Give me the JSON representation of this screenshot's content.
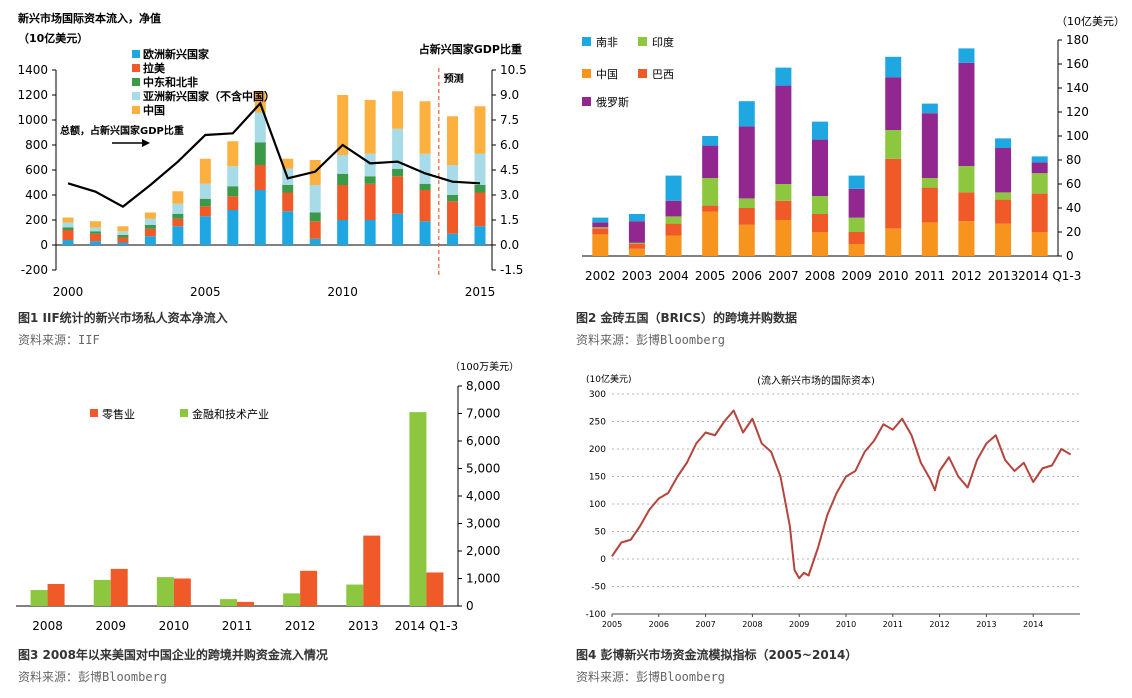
{
  "figures": [
    {
      "caption": "图1  IIF统计的新兴市场私人资本净流入",
      "source": "资料来源：IIF"
    },
    {
      "caption": "图2  金砖五国（BRICS）的跨境并购数据",
      "source": "资料来源：彭博Bloomberg"
    },
    {
      "caption": "图3  2008年以来美国对中国企业的跨境并购资金流入情况",
      "source": "资料来源：彭博Bloomberg"
    },
    {
      "caption": "图4  彭博新兴市场资金流模拟指标（2005~2014）",
      "source": "资料来源：彭博Bloomberg"
    }
  ],
  "chart_data": [
    {
      "type": "bar",
      "title": "新兴市场国际资本流入，净值",
      "ylabel": "（10亿美元）",
      "y2label": "占新兴国家GDP比重",
      "annotation": "总额，占新兴国家GDP比重",
      "forecast_label": "预测",
      "forecast_from": 2013.5,
      "x": [
        2000,
        2001,
        2002,
        2003,
        2004,
        2005,
        2006,
        2007,
        2008,
        2009,
        2010,
        2011,
        2012,
        2013,
        2014,
        2015
      ],
      "x_ticks": [
        "2000",
        "2005",
        "2010",
        "2015"
      ],
      "x_tick_values": [
        2000,
        2005,
        2010,
        2015
      ],
      "ylim": [
        -200,
        1400
      ],
      "y_ticks": [
        "-200",
        "0",
        "200",
        "400",
        "600",
        "800",
        "1000",
        "1200",
        "1400"
      ],
      "y2lim": [
        -1.5,
        10.5
      ],
      "y2_ticks": [
        "-1.5",
        "0.0",
        "1.5",
        "3.0",
        "4.5",
        "6.0",
        "7.5",
        "9.0",
        "10.5"
      ],
      "series": [
        {
          "name": "欧洲新兴国家",
          "color": "#1ea7e1",
          "values": [
            40,
            30,
            20,
            70,
            150,
            230,
            280,
            440,
            270,
            50,
            200,
            200,
            250,
            190,
            90,
            150
          ]
        },
        {
          "name": "拉美",
          "color": "#f05a28",
          "values": [
            80,
            60,
            40,
            60,
            60,
            80,
            110,
            200,
            150,
            140,
            280,
            290,
            300,
            250,
            260,
            270
          ]
        },
        {
          "name": "中东和北非",
          "color": "#3a9a48",
          "values": [
            20,
            20,
            20,
            30,
            40,
            60,
            80,
            180,
            60,
            70,
            90,
            60,
            60,
            50,
            50,
            60
          ]
        },
        {
          "name": "亚洲新兴国家（不含中国）",
          "color": "#a8dbe8",
          "values": [
            40,
            30,
            30,
            50,
            80,
            120,
            160,
            240,
            130,
            220,
            150,
            180,
            320,
            240,
            240,
            250
          ]
        },
        {
          "name": "中国",
          "color": "#fbb040",
          "values": [
            40,
            50,
            40,
            50,
            100,
            200,
            200,
            170,
            80,
            200,
            480,
            430,
            300,
            420,
            390,
            380
          ]
        }
      ],
      "line": {
        "name": "总额，占新兴国家GDP比重",
        "color": "#000000",
        "values": [
          3.7,
          3.2,
          2.3,
          3.6,
          5.0,
          6.6,
          6.7,
          8.5,
          4.0,
          4.4,
          6.0,
          4.9,
          5.0,
          4.3,
          3.8,
          3.7
        ]
      }
    },
    {
      "type": "bar",
      "ylabel": "（10亿美元）",
      "categories": [
        "2002",
        "2003",
        "2004",
        "2005",
        "2006",
        "2007",
        "2008",
        "2009",
        "2010",
        "2011",
        "2012",
        "2013",
        "2014 Q1-3"
      ],
      "ylim": [
        0,
        180
      ],
      "y_ticks": [
        "0",
        "20",
        "40",
        "60",
        "80",
        "100",
        "120",
        "140",
        "160",
        "180"
      ],
      "series": [
        {
          "name": "中国",
          "color": "#f7941d",
          "values": [
            18,
            6,
            17,
            37,
            26,
            30,
            20,
            10,
            23,
            28,
            29,
            27,
            20
          ]
        },
        {
          "name": "巴西",
          "color": "#f05a28",
          "values": [
            5,
            4,
            10,
            5,
            14,
            16,
            15,
            10,
            58,
            29,
            24,
            20,
            32
          ]
        },
        {
          "name": "印度",
          "color": "#8dc63f",
          "values": [
            1,
            1,
            6,
            23,
            8,
            14,
            15,
            12,
            24,
            8,
            22,
            6,
            17
          ]
        },
        {
          "name": "俄罗斯",
          "color": "#92278f",
          "values": [
            4,
            18,
            13,
            27,
            60,
            82,
            47,
            24,
            44,
            54,
            86,
            37,
            9
          ]
        },
        {
          "name": "南非",
          "color": "#1ea7e1",
          "values": [
            4,
            6,
            21,
            8,
            21,
            15,
            15,
            11,
            17,
            8,
            12,
            8,
            5
          ]
        }
      ]
    },
    {
      "type": "bar",
      "ylabel": "（100万美元）",
      "categories": [
        "2008",
        "2009",
        "2010",
        "2011",
        "2012",
        "2013",
        "2014 Q1-3"
      ],
      "ylim": [
        0,
        8000
      ],
      "y_ticks": [
        "0",
        "1,000",
        "2,000",
        "3,000",
        "4,000",
        "5,000",
        "6,000",
        "7,000",
        "8,000"
      ],
      "series": [
        {
          "name": "金融和技术产业",
          "color": "#8dc63f",
          "values": [
            580,
            950,
            1050,
            250,
            460,
            780,
            7050
          ]
        },
        {
          "name": "零售业",
          "color": "#f05a28",
          "values": [
            800,
            1350,
            1000,
            150,
            1280,
            2560,
            1220
          ]
        }
      ]
    },
    {
      "type": "line",
      "title": "(流入新兴市场的国际资本)",
      "ylabel": "(10亿美元)",
      "x_ticks": [
        "2005",
        "2006",
        "2007",
        "2008",
        "2009",
        "2010",
        "2011",
        "2012",
        "2013",
        "2014"
      ],
      "xlim": [
        2005,
        2015
      ],
      "ylim": [
        -100,
        300
      ],
      "y_ticks": [
        "-100",
        "-50",
        "0",
        "50",
        "100",
        "150",
        "200",
        "250",
        "300"
      ],
      "color": "#b5443c",
      "x": [
        2005.0,
        2005.2,
        2005.4,
        2005.6,
        2005.8,
        2006.0,
        2006.2,
        2006.4,
        2006.6,
        2006.8,
        2007.0,
        2007.2,
        2007.4,
        2007.6,
        2007.8,
        2008.0,
        2008.2,
        2008.4,
        2008.6,
        2008.8,
        2008.9,
        2009.0,
        2009.1,
        2009.2,
        2009.4,
        2009.6,
        2009.8,
        2010.0,
        2010.2,
        2010.4,
        2010.6,
        2010.8,
        2011.0,
        2011.2,
        2011.4,
        2011.6,
        2011.8,
        2011.9,
        2012.0,
        2012.2,
        2012.4,
        2012.6,
        2012.8,
        2013.0,
        2013.2,
        2013.4,
        2013.6,
        2013.8,
        2014.0,
        2014.2,
        2014.4,
        2014.6,
        2014.8
      ],
      "y": [
        5,
        30,
        35,
        60,
        90,
        110,
        120,
        150,
        175,
        210,
        230,
        225,
        250,
        270,
        230,
        255,
        210,
        195,
        150,
        60,
        -20,
        -35,
        -25,
        -30,
        20,
        80,
        120,
        150,
        160,
        195,
        215,
        245,
        235,
        255,
        225,
        175,
        145,
        125,
        160,
        185,
        150,
        130,
        180,
        210,
        225,
        180,
        160,
        175,
        140,
        165,
        170,
        200,
        190
      ]
    }
  ]
}
